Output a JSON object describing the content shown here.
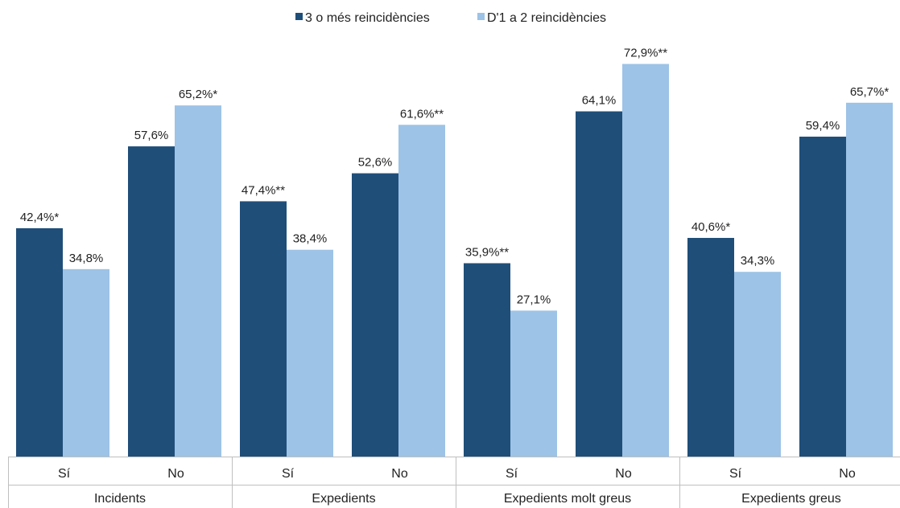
{
  "chart_data": {
    "type": "bar",
    "groups": [
      "Incidents",
      "Expedients",
      "Expedients molt greus",
      "Expedients greus"
    ],
    "categories": [
      "Sí",
      "No",
      "Sí",
      "No",
      "Sí",
      "No",
      "Sí",
      "No"
    ],
    "series": [
      {
        "name": "3 o més reincidències",
        "color": "#1f4e79",
        "values": [
          42.4,
          57.6,
          47.4,
          52.6,
          35.9,
          64.1,
          40.6,
          59.4
        ],
        "labels": [
          "42,4%*",
          "57,6%",
          "47,4%**",
          "52,6%",
          "35,9%**",
          "64,1%",
          "40,6%*",
          "59,4%"
        ]
      },
      {
        "name": "D'1 a 2 reincidències",
        "color": "#9dc3e6",
        "values": [
          34.8,
          65.2,
          38.4,
          61.6,
          27.1,
          72.9,
          34.3,
          65.7
        ],
        "labels": [
          "34,8%",
          "65,2%*",
          "38,4%",
          "61,6%**",
          "27,1%",
          "72,9%**",
          "34,3%",
          "65,7%*"
        ]
      }
    ],
    "title": "",
    "xlabel": "",
    "ylabel": "",
    "ylim": [
      0,
      80
    ],
    "legend_position": "top-center",
    "grid": false
  }
}
